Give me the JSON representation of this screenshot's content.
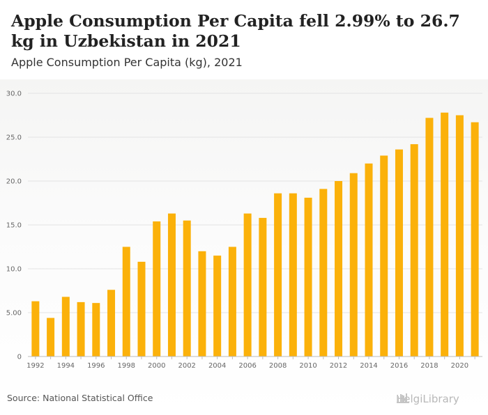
{
  "header": {
    "title": "Apple Consumption Per Capita fell 2.99% to 26.7 kg in Uzbekistan in 2021",
    "subtitle": "Apple Consumption Per Capita (kg), 2021"
  },
  "footer": {
    "source": "Source: National Statistical Office",
    "logo_text": "HelgiLibrary"
  },
  "colors": {
    "bar": "#fbb10a",
    "grid": "#e3e3e3"
  },
  "chart_data": {
    "type": "bar",
    "title": "Apple Consumption Per Capita (kg), 2021",
    "xlabel": "",
    "ylabel": "",
    "ylim": [
      0,
      30
    ],
    "yticks": [
      "0",
      "5.00",
      "10.0",
      "15.0",
      "20.0",
      "25.0",
      "30.0"
    ],
    "xticks": [
      "1992",
      "1994",
      "1996",
      "1998",
      "2000",
      "2002",
      "2004",
      "2006",
      "2008",
      "2010",
      "2012",
      "2014",
      "2016",
      "2018",
      "2020"
    ],
    "categories": [
      "1992",
      "1993",
      "1994",
      "1995",
      "1996",
      "1997",
      "1998",
      "1999",
      "2000",
      "2001",
      "2002",
      "2003",
      "2004",
      "2005",
      "2006",
      "2007",
      "2008",
      "2009",
      "2010",
      "2011",
      "2012",
      "2013",
      "2014",
      "2015",
      "2016",
      "2017",
      "2018",
      "2019",
      "2020",
      "2021"
    ],
    "values": [
      6.3,
      4.4,
      6.8,
      6.2,
      6.1,
      7.6,
      12.5,
      10.8,
      15.4,
      16.3,
      15.5,
      12.0,
      11.5,
      12.5,
      16.3,
      15.8,
      18.6,
      18.6,
      18.1,
      19.1,
      20.0,
      20.9,
      22.0,
      22.9,
      23.6,
      24.2,
      27.2,
      27.8,
      27.5,
      26.7
    ],
    "grid": true,
    "legend": "none"
  }
}
